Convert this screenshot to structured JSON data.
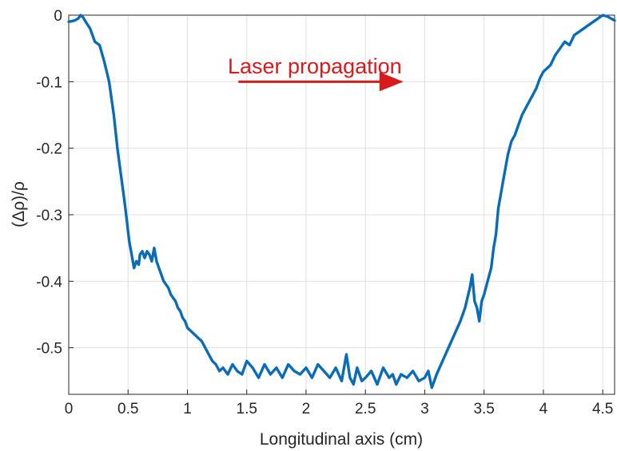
{
  "chart_data": {
    "type": "line",
    "title": "",
    "xlabel": "Longitudinal axis (cm)",
    "ylabel": "(Δρ)/ρ",
    "xlim": [
      0,
      4.6
    ],
    "ylim": [
      -0.57,
      0
    ],
    "xticks": [
      0,
      0.5,
      1,
      1.5,
      2,
      2.5,
      3,
      3.5,
      4,
      4.5
    ],
    "xtick_labels": [
      "0",
      "0.5",
      "1",
      "1.5",
      "2",
      "2.5",
      "3",
      "3.5",
      "4",
      "4.5"
    ],
    "yticks": [
      0,
      -0.1,
      -0.2,
      -0.3,
      -0.4,
      -0.5
    ],
    "ytick_labels": [
      "0",
      "-0.1",
      "-0.2",
      "-0.3",
      "-0.4",
      "-0.5"
    ],
    "grid": true,
    "legend": "none",
    "colors": {
      "series": "#0a6cb7",
      "annotation": "#d91a1a"
    },
    "annotation": {
      "text": "Laser propagation",
      "arrow_from_x": 1.43,
      "arrow_to_x": 2.8,
      "arrow_y": -0.1
    },
    "series": [
      {
        "x": [
          0,
          0.05,
          0.08,
          0.1,
          0.12,
          0.15,
          0.18,
          0.22,
          0.26,
          0.3,
          0.34,
          0.38,
          0.41,
          0.44,
          0.47,
          0.49,
          0.51,
          0.53,
          0.55,
          0.57,
          0.59,
          0.6,
          0.62,
          0.64,
          0.66,
          0.68,
          0.7,
          0.72,
          0.74,
          0.76,
          0.78,
          0.8,
          0.82,
          0.84,
          0.86,
          0.88,
          0.9,
          0.92,
          0.94,
          0.96,
          0.98,
          1.0,
          1.03,
          1.06,
          1.09,
          1.12,
          1.15,
          1.18,
          1.21,
          1.24,
          1.27,
          1.3,
          1.34,
          1.38,
          1.42,
          1.46,
          1.5,
          1.55,
          1.6,
          1.65,
          1.7,
          1.75,
          1.8,
          1.85,
          1.9,
          1.95,
          2.0,
          2.05,
          2.1,
          2.15,
          2.2,
          2.25,
          2.3,
          2.34,
          2.37,
          2.4,
          2.43,
          2.47,
          2.5,
          2.55,
          2.6,
          2.65,
          2.7,
          2.73,
          2.76,
          2.8,
          2.85,
          2.9,
          2.95,
          3.0,
          3.03,
          3.06,
          3.1,
          3.15,
          3.2,
          3.25,
          3.3,
          3.34,
          3.38,
          3.4,
          3.42,
          3.44,
          3.46,
          3.48,
          3.5,
          3.53,
          3.56,
          3.58,
          3.6,
          3.62,
          3.64,
          3.66,
          3.68,
          3.7,
          3.73,
          3.76,
          3.79,
          3.82,
          3.85,
          3.88,
          3.91,
          3.94,
          3.97,
          4.0,
          4.03,
          4.06,
          4.1,
          4.14,
          4.18,
          4.22,
          4.26,
          4.3,
          4.34,
          4.38,
          4.42,
          4.46,
          4.5,
          4.54,
          4.57,
          4.6
        ],
        "values": [
          -0.01,
          -0.008,
          -0.005,
          0,
          -0.003,
          -0.012,
          -0.02,
          -0.04,
          -0.045,
          -0.07,
          -0.1,
          -0.15,
          -0.2,
          -0.24,
          -0.28,
          -0.31,
          -0.34,
          -0.36,
          -0.38,
          -0.37,
          -0.375,
          -0.36,
          -0.355,
          -0.365,
          -0.355,
          -0.36,
          -0.37,
          -0.35,
          -0.37,
          -0.38,
          -0.39,
          -0.4,
          -0.405,
          -0.41,
          -0.42,
          -0.425,
          -0.43,
          -0.44,
          -0.445,
          -0.455,
          -0.46,
          -0.47,
          -0.475,
          -0.48,
          -0.485,
          -0.49,
          -0.5,
          -0.51,
          -0.52,
          -0.525,
          -0.535,
          -0.53,
          -0.54,
          -0.525,
          -0.535,
          -0.54,
          -0.52,
          -0.53,
          -0.545,
          -0.525,
          -0.54,
          -0.53,
          -0.545,
          -0.525,
          -0.535,
          -0.54,
          -0.53,
          -0.545,
          -0.525,
          -0.535,
          -0.545,
          -0.53,
          -0.55,
          -0.51,
          -0.545,
          -0.555,
          -0.53,
          -0.55,
          -0.545,
          -0.535,
          -0.555,
          -0.53,
          -0.545,
          -0.54,
          -0.555,
          -0.54,
          -0.545,
          -0.535,
          -0.55,
          -0.545,
          -0.535,
          -0.56,
          -0.54,
          -0.52,
          -0.5,
          -0.48,
          -0.46,
          -0.44,
          -0.41,
          -0.39,
          -0.43,
          -0.44,
          -0.46,
          -0.43,
          -0.42,
          -0.4,
          -0.38,
          -0.35,
          -0.33,
          -0.29,
          -0.27,
          -0.25,
          -0.23,
          -0.21,
          -0.19,
          -0.18,
          -0.165,
          -0.15,
          -0.14,
          -0.13,
          -0.12,
          -0.11,
          -0.095,
          -0.085,
          -0.08,
          -0.075,
          -0.06,
          -0.05,
          -0.04,
          -0.045,
          -0.03,
          -0.025,
          -0.02,
          -0.015,
          -0.01,
          -0.005,
          0,
          -0.002,
          -0.005,
          -0.008
        ]
      }
    ]
  }
}
